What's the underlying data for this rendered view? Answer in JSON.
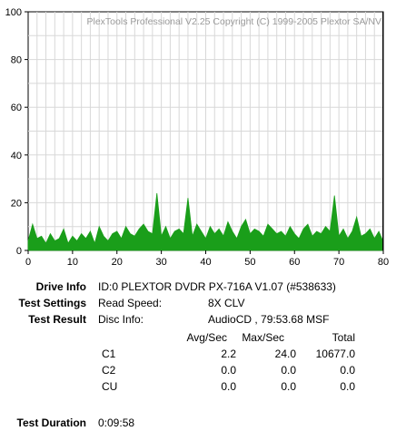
{
  "chart_data": {
    "type": "area",
    "watermark": "PlexTools Professional V2.25 Copyright (C) 1999-2005 Plextor SA/NV",
    "xlim": [
      0,
      80
    ],
    "ylim": [
      0,
      100
    ],
    "x_ticks": [
      "0",
      "10",
      "20",
      "30",
      "40",
      "50",
      "60",
      "70",
      "80"
    ],
    "y_ticks": [
      "0",
      "20",
      "40",
      "60",
      "80",
      "100"
    ],
    "grid": true,
    "end_marker_x": 79.9,
    "series": [
      {
        "color": "#1a9e1a",
        "x": [
          0,
          1,
          2,
          3,
          4,
          5,
          6,
          7,
          8,
          9,
          10,
          11,
          12,
          13,
          14,
          15,
          16,
          17,
          18,
          19,
          20,
          21,
          22,
          23,
          24,
          25,
          26,
          27,
          28,
          29,
          30,
          31,
          32,
          33,
          34,
          35,
          36,
          37,
          38,
          39,
          40,
          41,
          42,
          43,
          44,
          45,
          46,
          47,
          48,
          49,
          50,
          51,
          52,
          53,
          54,
          55,
          56,
          57,
          58,
          59,
          60,
          61,
          62,
          63,
          64,
          65,
          66,
          67,
          68,
          69,
          70,
          71,
          72,
          73,
          74,
          75,
          76,
          77,
          78,
          79,
          79.9
        ],
        "y": [
          4,
          11,
          5,
          6,
          3,
          7,
          4,
          5,
          9,
          3,
          6,
          4,
          7,
          5,
          8,
          3,
          10,
          6,
          4,
          7,
          8,
          5,
          10,
          7,
          6,
          9,
          11,
          8,
          7,
          24,
          6,
          10,
          5,
          8,
          9,
          7,
          22,
          6,
          11,
          8,
          5,
          10,
          7,
          9,
          6,
          12,
          8,
          5,
          10,
          13,
          7,
          9,
          8,
          6,
          11,
          9,
          7,
          8,
          6,
          10,
          7,
          5,
          9,
          11,
          6,
          8,
          7,
          10,
          8,
          23,
          6,
          9,
          5,
          8,
          14,
          6,
          7,
          9,
          5,
          8,
          4
        ]
      }
    ]
  },
  "info": {
    "drive_info_label": "Drive Info",
    "drive_info_value": "ID:0 PLEXTOR DVDR PX-716A V1.07 (#538633)",
    "test_settings_label": "Test Settings",
    "read_speed_label": "Read Speed:",
    "read_speed_value": "8X CLV",
    "test_result_label": "Test Result",
    "disc_info_label": "Disc Info:",
    "disc_info_value": "AudioCD , 79:53.68 MSF",
    "test_duration_label": "Test Duration",
    "test_duration_value": "0:09:58"
  },
  "results": {
    "headers": [
      "Avg/Sec",
      "Max/Sec",
      "Total"
    ],
    "rows": [
      {
        "name": "C1",
        "avg": "2.2",
        "max": "24.0",
        "total": "10677.0"
      },
      {
        "name": "C2",
        "avg": "0.0",
        "max": "0.0",
        "total": "0.0"
      },
      {
        "name": "CU",
        "avg": "0.0",
        "max": "0.0",
        "total": "0.0"
      }
    ]
  }
}
